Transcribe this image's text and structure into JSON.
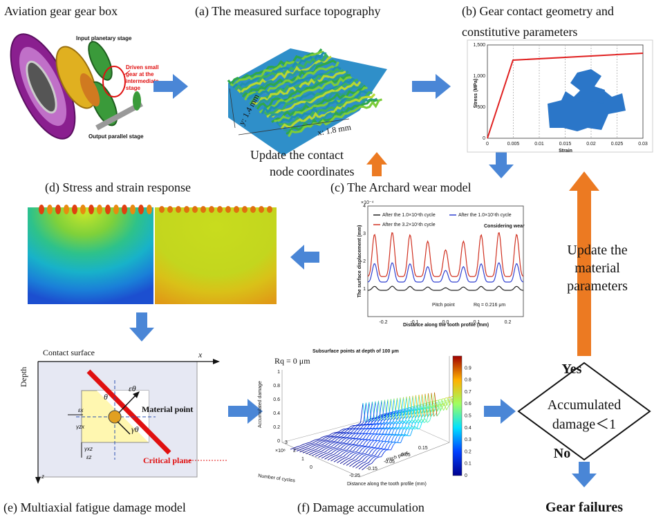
{
  "title": "Aviation gear gear box",
  "gearbox": {
    "input": "Input planetary stage",
    "driven": [
      "Driven small",
      "gear at the",
      "intermediate",
      "stage"
    ],
    "output": "Output parallel stage"
  },
  "panel_a": {
    "title": "(a) The measured surface topography",
    "y_label": "y: 1.4 mm",
    "x_label": "x: 1.8 mm"
  },
  "panel_b": {
    "title": [
      "(b) Gear contact geometry and",
      "constitutive parameters"
    ],
    "y_label": "Stress (MPa)",
    "x_label": "Strain",
    "yticks": [
      "0",
      "500",
      "1,000",
      "1,500"
    ],
    "xticks": [
      "0",
      "0.005",
      "0.01",
      "0.015",
      "0.02",
      "0.025",
      "0.03"
    ]
  },
  "update_contact": [
    "Update the contact",
    "node coordinates"
  ],
  "panel_c": {
    "title": "(c) The Archard wear model",
    "exponent": "×10⁻⁴",
    "legend": [
      "After the 1.0×10⁴th cycle",
      "After the 1.0×10⁵th cycle",
      "After the 3.2×10⁵th cycle"
    ],
    "note": "Considering wear",
    "y_label": "The surface displacement (mm)",
    "x_label": "Distance along the tooth profile (mm)",
    "pitch": "Pitch point",
    "rq": "Rq = 0.216 μm",
    "yticks": [
      "1",
      "2",
      "3",
      "4"
    ],
    "xticks": [
      "-0.2",
      "-0.1",
      "0.0",
      "0.1",
      "0.2"
    ]
  },
  "panel_d": {
    "title": "(d) Stress and strain response"
  },
  "update_material": [
    "Update the",
    "material",
    "parameters"
  ],
  "panel_e": {
    "title": "(e) Multiaxial fatigue damage model",
    "surface": "Contact surface",
    "x": "x",
    "depth": "Depth",
    "z": "z",
    "theta": "θ",
    "eps_theta": "εθ",
    "material_point": "Material point",
    "gamma_theta": "γθ",
    "eps_x": "εx",
    "gamma_zx": "γzx",
    "gamma_xz": "γxz",
    "eps_z": "εz",
    "critical_plane": "Critical plane"
  },
  "panel_f": {
    "title": "(f) Damage accumulation",
    "plot_title": "Subsurface points at depth of 100 μm",
    "rq": "Rq = 0  μm",
    "z_label": "Accumulated damage",
    "cycles_label": "Number of cycles",
    "cycles_exp": "×10⁸",
    "dist_label": "Distance along the tooth profile (mm)",
    "pitch": "Pitch point",
    "zticks": [
      "0",
      "0.2",
      "0.4",
      "0.6",
      "0.8",
      "1"
    ],
    "cycleticks": [
      "0",
      "1",
      "2",
      "3"
    ],
    "distticks": [
      "-0.25",
      "-0.15",
      "-0.05",
      "0.05",
      "0.15"
    ],
    "colorbar": [
      "0",
      "0.1",
      "0.2",
      "0.3",
      "0.4",
      "0.5",
      "0.6",
      "0.7",
      "0.8",
      "0.9"
    ]
  },
  "decision": {
    "yes": "Yes",
    "text": [
      "Accumulated",
      "damage＜1"
    ],
    "no": "No",
    "failure": "Gear failures"
  }
}
